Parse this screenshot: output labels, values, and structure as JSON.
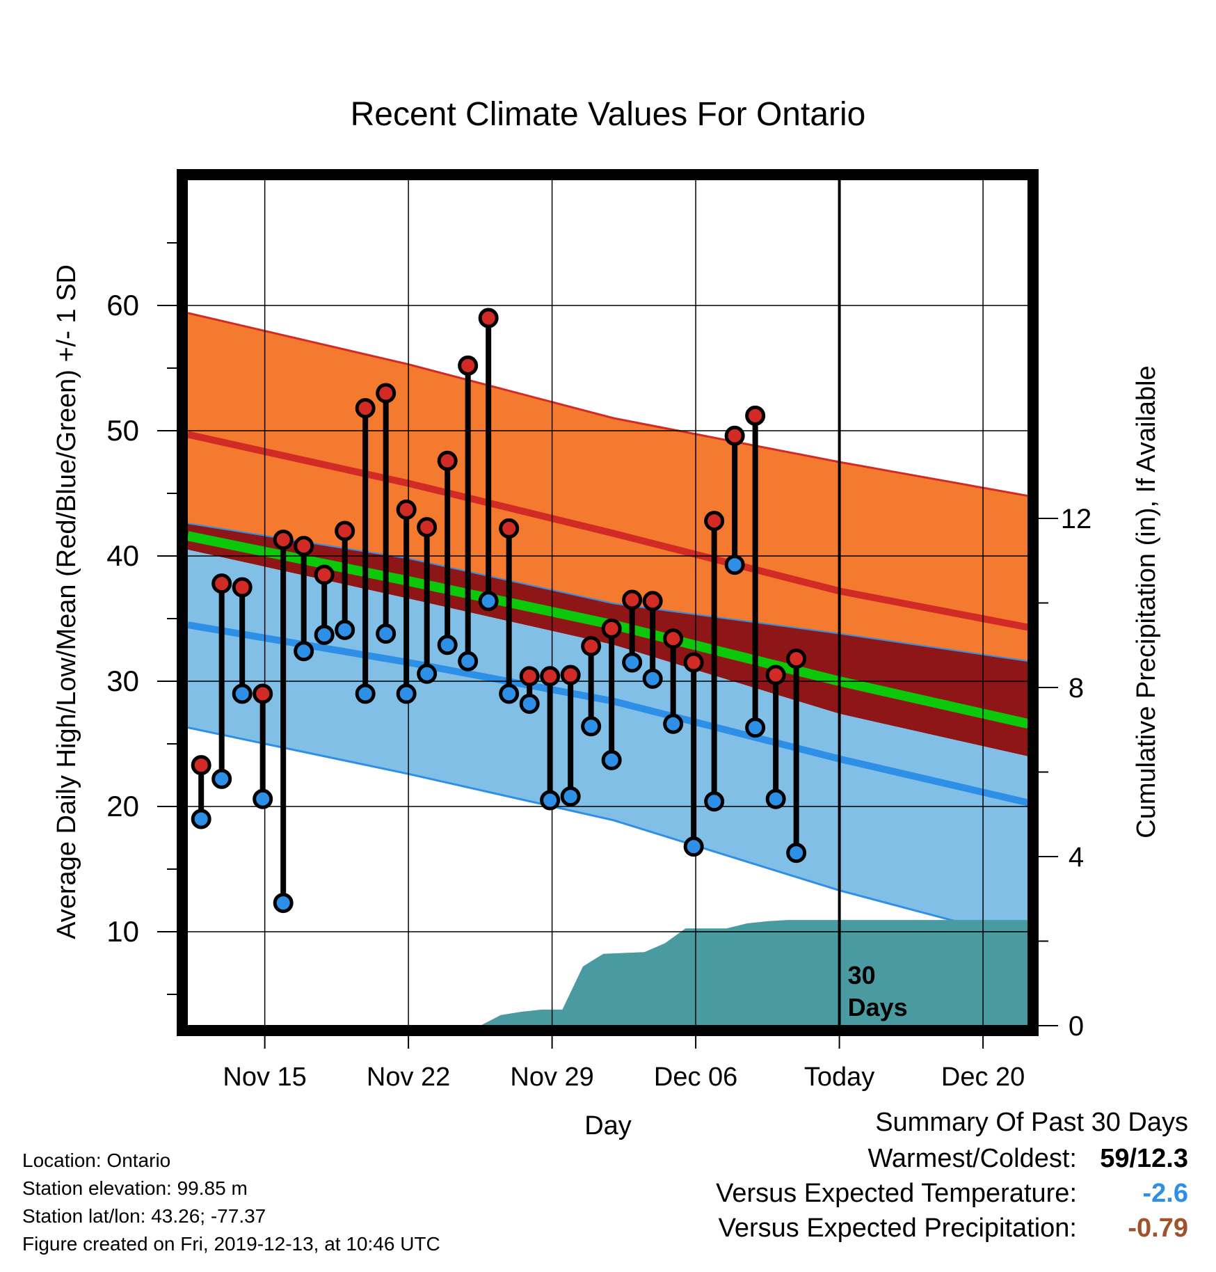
{
  "footer": {
    "location": "Location: Ontario",
    "elevation": "Station elevation: 99.85 m",
    "latlon": "Station lat/lon: 43.26; -77.37",
    "created": "Figure created on Fri, 2019-12-13, at 10:46 UTC"
  },
  "summary": {
    "title": "Summary Of Past 30 Days",
    "warmest_label": "Warmest/Coldest:",
    "warmest_value": "59/12.3",
    "temp_label": "Versus Expected Temperature:",
    "temp_value": "-2.6",
    "precip_label": "Versus Expected Precipitation:",
    "precip_value": "-0.79",
    "colors": {
      "temp": "#2e8fe6",
      "precip": "#a0522d"
    }
  },
  "chart_data": {
    "type": "line",
    "title": "Recent Climate Values For Ontario",
    "xlabel": "Day",
    "ylabel": "Average Daily High/Low/Mean (Red/Blue/Green) +/- 1 SD",
    "y2label": "Cumulative Precipitation (in), If Available",
    "x_tick_labels": [
      "Nov 15",
      "Nov 22",
      "Nov 29",
      "Dec 06",
      "Today",
      "Dec 20"
    ],
    "x_tick_days": [
      3,
      10,
      17,
      24,
      31,
      38
    ],
    "xlim_days": [
      -0.75,
      40.2
    ],
    "ylim": [
      2.5,
      70
    ],
    "y_ticks": [
      10,
      20,
      30,
      40,
      50,
      60
    ],
    "y2lim": [
      0,
      20
    ],
    "y2_ticks": [
      0,
      4,
      8,
      12
    ],
    "today_day": 31,
    "today_annotation": [
      "30",
      "Days"
    ],
    "grid": true,
    "colors": {
      "high_band": "#f47a30",
      "high_mean": "#d22b26",
      "mean_band": "#8e1617",
      "mean_line": "#0bc80b",
      "low_band": "#82bfe6",
      "low_mean": "#2e8fe6",
      "precip": "#4a9ba1",
      "high_point": "#d22b26",
      "low_point": "#2e8fe6"
    },
    "normals": {
      "day": [
        -0.75,
        10,
        20,
        31,
        40.2
      ],
      "high_upper": [
        59.4,
        55.3,
        51.0,
        47.5,
        44.8
      ],
      "high_mean": [
        49.7,
        45.8,
        41.8,
        37.2,
        34.3
      ],
      "high_lower": [
        42.6,
        39.8,
        36.2,
        33.8,
        31.6
      ],
      "mean": [
        41.6,
        38.0,
        34.5,
        30.0,
        26.6
      ],
      "low_upper": [
        40.5,
        36.6,
        32.9,
        27.4,
        24.0
      ],
      "low_mean": [
        34.5,
        31.5,
        28.4,
        23.8,
        20.3
      ],
      "low_lower": [
        26.3,
        22.6,
        18.9,
        13.3,
        9.3
      ]
    },
    "observed": {
      "day": [
        -0.1,
        0.9,
        1.9,
        2.9,
        3.9,
        4.9,
        5.9,
        6.9,
        7.9,
        8.9,
        9.9,
        10.9,
        11.9,
        12.9,
        13.9,
        14.9,
        15.9,
        16.9,
        17.9,
        18.9,
        19.9,
        20.9,
        21.9,
        22.9,
        23.9,
        24.9,
        25.9,
        26.9,
        27.9,
        28.9
      ],
      "high": [
        23.3,
        37.8,
        37.5,
        29.0,
        41.3,
        40.8,
        38.5,
        42.0,
        51.8,
        53.0,
        43.7,
        42.3,
        47.6,
        55.2,
        59.0,
        42.2,
        30.4,
        30.4,
        30.5,
        32.8,
        34.2,
        36.5,
        36.4,
        33.4,
        31.5,
        42.8,
        49.6,
        51.2,
        30.5,
        31.8
      ],
      "low": [
        19.0,
        22.2,
        29.0,
        20.6,
        12.3,
        32.4,
        33.7,
        34.1,
        29.0,
        33.8,
        29.0,
        30.6,
        32.9,
        31.6,
        36.4,
        29.0,
        28.2,
        20.5,
        20.8,
        26.4,
        23.7,
        31.5,
        30.2,
        26.6,
        16.8,
        20.4,
        39.3,
        26.3,
        20.6,
        16.3
      ]
    },
    "precipitation": {
      "day": [
        13.5,
        14.5,
        15.5,
        16.5,
        17.5,
        18.5,
        19.0,
        19.5,
        20.5,
        21.5,
        22.5,
        23.5,
        24.5,
        25.5,
        26.5,
        27.5,
        28.5,
        31,
        40.2
      ],
      "cumulative": [
        0.0,
        0.25,
        0.33,
        0.38,
        0.38,
        1.4,
        1.55,
        1.7,
        1.72,
        1.74,
        1.95,
        2.3,
        2.3,
        2.3,
        2.42,
        2.47,
        2.5,
        2.5,
        2.5
      ]
    }
  }
}
